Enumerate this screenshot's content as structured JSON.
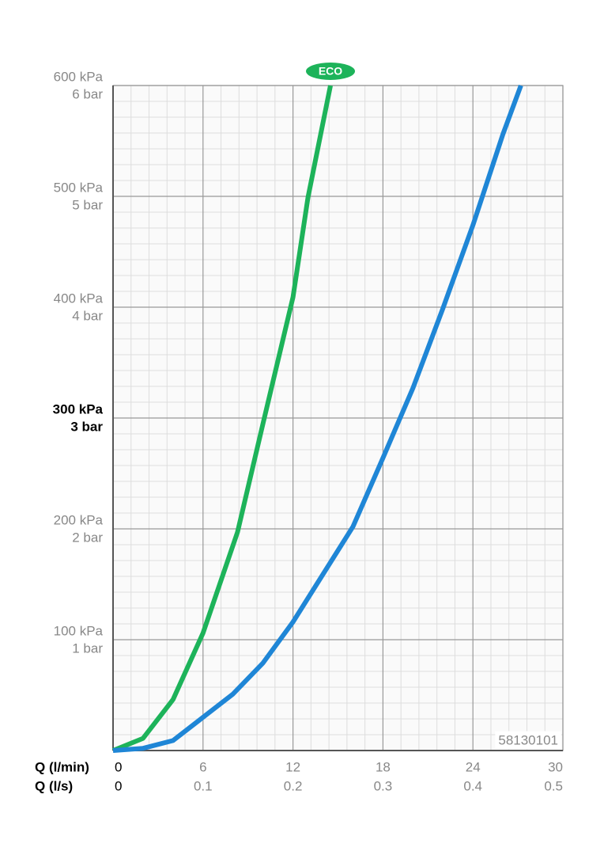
{
  "chart_data": {
    "type": "line",
    "xlabel": "Q (l/min)",
    "x2label": "Q (l/s)",
    "xlim": [
      0,
      30
    ],
    "xticks": [
      0,
      6,
      12,
      18,
      24,
      30
    ],
    "x2lim": [
      0,
      0.5
    ],
    "x2ticks": [
      0,
      0.1,
      0.2,
      0.3,
      0.4,
      0.5
    ],
    "ylim": [
      0,
      600
    ],
    "yticks": [
      {
        "value": 100,
        "label": "100 kPa"
      },
      {
        "value": 200,
        "label": "200 kPa"
      },
      {
        "value": 300,
        "label": "300 kPa"
      },
      {
        "value": 400,
        "label": "400 kPa"
      },
      {
        "value": 500,
        "label": "500 kPa"
      },
      {
        "value": 600,
        "label": "600 kPa"
      }
    ],
    "y2lim": [
      0,
      6
    ],
    "y2ticks": [
      {
        "value": 1,
        "label": "1 bar"
      },
      {
        "value": 2,
        "label": "2 bar"
      },
      {
        "value": 3,
        "label": "3 bar"
      },
      {
        "value": 4,
        "label": "4 bar"
      },
      {
        "value": 5,
        "label": "5 bar"
      },
      {
        "value": 6,
        "label": "6 bar"
      }
    ],
    "bold_ytick": 300,
    "grid": true,
    "minor_grid": true,
    "code": "58130101",
    "series": [
      {
        "name": "ECO",
        "color": "#1db35a",
        "x": [
          0,
          2,
          4,
          6,
          8.3,
          10,
          12,
          13,
          14.5
        ],
        "values": [
          0,
          11,
          46,
          106,
          197,
          295,
          409,
          499,
          600
        ]
      },
      {
        "color": "#1f86d6",
        "x": [
          0,
          2,
          4,
          6,
          8,
          10,
          12,
          14,
          16,
          18,
          20,
          22,
          24,
          26,
          27.2
        ],
        "values": [
          0,
          2,
          9,
          30,
          51,
          79,
          116,
          159,
          202,
          264,
          327,
          399,
          474,
          556,
          600
        ]
      }
    ]
  }
}
